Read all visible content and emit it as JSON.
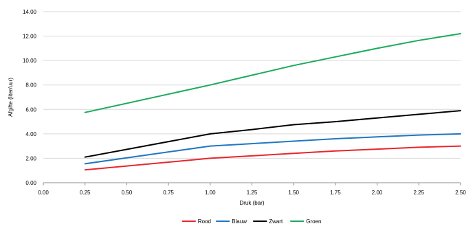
{
  "chart_data": {
    "type": "line",
    "xlabel": "Druk (bar)",
    "ylabel": "Afgifte (liter/uur)",
    "xlim": [
      0,
      2.5
    ],
    "ylim": [
      0,
      14
    ],
    "x_ticks": [
      "0.00",
      "0.25",
      "0.50",
      "0.75",
      "1.00",
      "1.25",
      "1.50",
      "1.75",
      "2.00",
      "2.25",
      "2.50"
    ],
    "y_ticks": [
      "0.00",
      "2.00",
      "4.00",
      "6.00",
      "8.00",
      "10.00",
      "12.00",
      "14.00"
    ],
    "grid": "horizontal",
    "legend_position": "bottom",
    "series": [
      {
        "name": "Rood",
        "color": "#e8262b",
        "x": [
          0.25,
          1.0,
          1.25,
          1.5,
          1.75,
          2.0,
          2.25,
          2.5
        ],
        "values": [
          1.05,
          2.0,
          2.2,
          2.4,
          2.6,
          2.75,
          2.9,
          3.0
        ]
      },
      {
        "name": "Blauw",
        "color": "#1f77c2",
        "x": [
          0.25,
          1.0,
          1.25,
          1.5,
          1.75,
          2.0,
          2.25,
          2.5
        ],
        "values": [
          1.55,
          3.0,
          3.2,
          3.4,
          3.6,
          3.75,
          3.9,
          4.0
        ]
      },
      {
        "name": "Zwart",
        "color": "#000000",
        "x": [
          0.25,
          1.0,
          1.25,
          1.5,
          1.75,
          2.0,
          2.25,
          2.5
        ],
        "values": [
          2.1,
          4.0,
          4.35,
          4.75,
          5.0,
          5.3,
          5.6,
          5.9
        ]
      },
      {
        "name": "Groen",
        "color": "#1aab5a",
        "x": [
          0.25,
          1.0,
          1.25,
          1.5,
          1.75,
          2.0,
          2.25,
          2.5
        ],
        "values": [
          5.75,
          8.0,
          8.8,
          9.6,
          10.3,
          11.0,
          11.65,
          12.2
        ]
      }
    ]
  }
}
